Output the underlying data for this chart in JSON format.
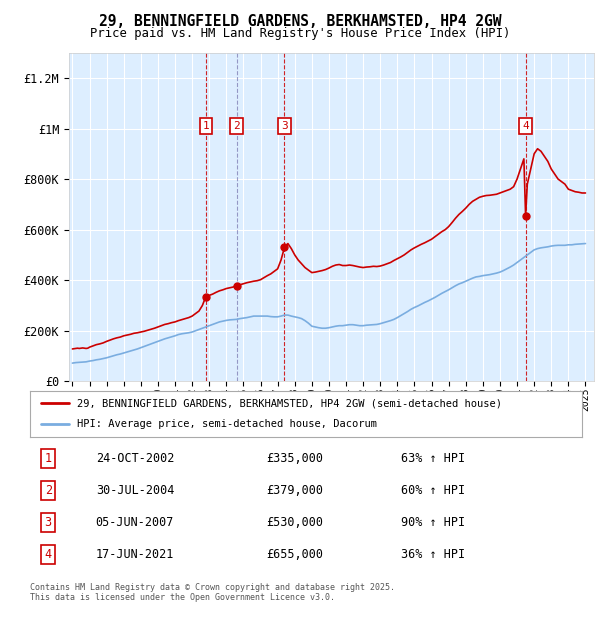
{
  "title": "29, BENNINGFIELD GARDENS, BERKHAMSTED, HP4 2GW",
  "subtitle": "Price paid vs. HM Land Registry's House Price Index (HPI)",
  "legend_line1": "29, BENNINGFIELD GARDENS, BERKHAMSTED, HP4 2GW (semi-detached house)",
  "legend_line2": "HPI: Average price, semi-detached house, Dacorum",
  "footer": "Contains HM Land Registry data © Crown copyright and database right 2025.\nThis data is licensed under the Open Government Licence v3.0.",
  "transactions": [
    {
      "num": 1,
      "date": "24-OCT-2002",
      "price": 335000,
      "hpi_pct": "63% ↑ HPI",
      "year": 2002.8,
      "vline_color": "#cc0000"
    },
    {
      "num": 2,
      "date": "30-JUL-2004",
      "price": 379000,
      "hpi_pct": "60% ↑ HPI",
      "year": 2004.6,
      "vline_color": "#8888bb"
    },
    {
      "num": 3,
      "date": "05-JUN-2007",
      "price": 530000,
      "hpi_pct": "90% ↑ HPI",
      "year": 2007.4,
      "vline_color": "#cc0000"
    },
    {
      "num": 4,
      "date": "17-JUN-2021",
      "price": 655000,
      "hpi_pct": "36% ↑ HPI",
      "year": 2021.5,
      "vline_color": "#cc0000"
    }
  ],
  "red_color": "#cc0000",
  "blue_color": "#7aade0",
  "bg_color": "#ddeeff",
  "grid_color": "#ffffff",
  "ylim": [
    0,
    1300000
  ],
  "yticks": [
    0,
    200000,
    400000,
    600000,
    800000,
    1000000,
    1200000
  ],
  "ytick_labels": [
    "£0",
    "£200K",
    "£400K",
    "£600K",
    "£800K",
    "£1M",
    "£1.2M"
  ],
  "red_x": [
    1995.0,
    1995.1,
    1995.2,
    1995.3,
    1995.4,
    1995.5,
    1995.6,
    1995.7,
    1995.8,
    1995.9,
    1996.0,
    1996.2,
    1996.4,
    1996.6,
    1996.8,
    1997.0,
    1997.2,
    1997.4,
    1997.6,
    1997.8,
    1998.0,
    1998.2,
    1998.4,
    1998.6,
    1998.8,
    1999.0,
    1999.2,
    1999.4,
    1999.6,
    1999.8,
    2000.0,
    2000.2,
    2000.4,
    2000.6,
    2000.8,
    2001.0,
    2001.2,
    2001.4,
    2001.6,
    2001.8,
    2002.0,
    2002.2,
    2002.4,
    2002.6,
    2002.8,
    2003.0,
    2003.2,
    2003.4,
    2003.6,
    2003.8,
    2004.0,
    2004.2,
    2004.4,
    2004.6,
    2004.8,
    2005.0,
    2005.2,
    2005.4,
    2005.6,
    2005.8,
    2006.0,
    2006.2,
    2006.4,
    2006.6,
    2006.8,
    2007.0,
    2007.2,
    2007.4,
    2007.6,
    2007.8,
    2008.0,
    2008.2,
    2008.4,
    2008.6,
    2008.8,
    2009.0,
    2009.2,
    2009.4,
    2009.6,
    2009.8,
    2010.0,
    2010.2,
    2010.4,
    2010.6,
    2010.8,
    2011.0,
    2011.2,
    2011.4,
    2011.6,
    2011.8,
    2012.0,
    2012.2,
    2012.4,
    2012.6,
    2012.8,
    2013.0,
    2013.2,
    2013.4,
    2013.6,
    2013.8,
    2014.0,
    2014.2,
    2014.4,
    2014.6,
    2014.8,
    2015.0,
    2015.2,
    2015.4,
    2015.6,
    2015.8,
    2016.0,
    2016.2,
    2016.4,
    2016.6,
    2016.8,
    2017.0,
    2017.2,
    2017.4,
    2017.6,
    2017.8,
    2018.0,
    2018.2,
    2018.4,
    2018.6,
    2018.8,
    2019.0,
    2019.2,
    2019.4,
    2019.6,
    2019.8,
    2020.0,
    2020.2,
    2020.4,
    2020.6,
    2020.8,
    2021.0,
    2021.2,
    2021.4,
    2021.5,
    2021.6,
    2021.8,
    2022.0,
    2022.2,
    2022.4,
    2022.6,
    2022.8,
    2023.0,
    2023.2,
    2023.4,
    2023.6,
    2023.8,
    2024.0,
    2024.2,
    2024.4,
    2024.6,
    2024.8,
    2025.0
  ],
  "red_y": [
    128000,
    129000,
    130000,
    131000,
    130000,
    131000,
    132000,
    131000,
    130000,
    131000,
    135000,
    140000,
    145000,
    148000,
    152000,
    158000,
    163000,
    168000,
    172000,
    175000,
    180000,
    183000,
    186000,
    190000,
    192000,
    195000,
    198000,
    202000,
    206000,
    210000,
    215000,
    220000,
    225000,
    228000,
    232000,
    235000,
    240000,
    244000,
    248000,
    252000,
    258000,
    268000,
    278000,
    300000,
    335000,
    340000,
    345000,
    352000,
    358000,
    362000,
    367000,
    370000,
    373000,
    379000,
    382000,
    386000,
    390000,
    393000,
    396000,
    398000,
    402000,
    410000,
    418000,
    425000,
    435000,
    445000,
    480000,
    530000,
    545000,
    525000,
    500000,
    480000,
    465000,
    450000,
    440000,
    430000,
    432000,
    435000,
    438000,
    442000,
    448000,
    455000,
    460000,
    462000,
    458000,
    458000,
    460000,
    458000,
    455000,
    452000,
    450000,
    452000,
    453000,
    455000,
    454000,
    456000,
    460000,
    465000,
    470000,
    478000,
    485000,
    492000,
    500000,
    510000,
    520000,
    528000,
    535000,
    542000,
    548000,
    555000,
    562000,
    572000,
    582000,
    592000,
    600000,
    612000,
    628000,
    645000,
    660000,
    672000,
    685000,
    700000,
    712000,
    720000,
    728000,
    732000,
    735000,
    736000,
    738000,
    740000,
    745000,
    750000,
    755000,
    760000,
    770000,
    800000,
    840000,
    880000,
    655000,
    780000,
    840000,
    900000,
    920000,
    910000,
    890000,
    870000,
    840000,
    820000,
    800000,
    790000,
    780000,
    760000,
    755000,
    750000,
    748000,
    745000,
    745000
  ],
  "blue_x": [
    1995.0,
    1995.2,
    1995.4,
    1995.6,
    1995.8,
    1996.0,
    1996.2,
    1996.4,
    1996.6,
    1996.8,
    1997.0,
    1997.2,
    1997.4,
    1997.6,
    1997.8,
    1998.0,
    1998.2,
    1998.4,
    1998.6,
    1998.8,
    1999.0,
    1999.2,
    1999.4,
    1999.6,
    1999.8,
    2000.0,
    2000.2,
    2000.4,
    2000.6,
    2000.8,
    2001.0,
    2001.2,
    2001.4,
    2001.6,
    2001.8,
    2002.0,
    2002.2,
    2002.4,
    2002.6,
    2002.8,
    2003.0,
    2003.2,
    2003.4,
    2003.6,
    2003.8,
    2004.0,
    2004.2,
    2004.4,
    2004.6,
    2004.8,
    2005.0,
    2005.2,
    2005.4,
    2005.6,
    2005.8,
    2006.0,
    2006.2,
    2006.4,
    2006.6,
    2006.8,
    2007.0,
    2007.2,
    2007.4,
    2007.6,
    2007.8,
    2008.0,
    2008.2,
    2008.4,
    2008.6,
    2008.8,
    2009.0,
    2009.2,
    2009.4,
    2009.6,
    2009.8,
    2010.0,
    2010.2,
    2010.4,
    2010.6,
    2010.8,
    2011.0,
    2011.2,
    2011.4,
    2011.6,
    2011.8,
    2012.0,
    2012.2,
    2012.4,
    2012.6,
    2012.8,
    2013.0,
    2013.2,
    2013.4,
    2013.6,
    2013.8,
    2014.0,
    2014.2,
    2014.4,
    2014.6,
    2014.8,
    2015.0,
    2015.2,
    2015.4,
    2015.6,
    2015.8,
    2016.0,
    2016.2,
    2016.4,
    2016.6,
    2016.8,
    2017.0,
    2017.2,
    2017.4,
    2017.6,
    2017.8,
    2018.0,
    2018.2,
    2018.4,
    2018.6,
    2018.8,
    2019.0,
    2019.2,
    2019.4,
    2019.6,
    2019.8,
    2020.0,
    2020.2,
    2020.4,
    2020.6,
    2020.8,
    2021.0,
    2021.2,
    2021.4,
    2021.6,
    2021.8,
    2022.0,
    2022.2,
    2022.4,
    2022.6,
    2022.8,
    2023.0,
    2023.2,
    2023.4,
    2023.6,
    2023.8,
    2024.0,
    2024.2,
    2024.4,
    2024.6,
    2024.8,
    2025.0
  ],
  "blue_y": [
    72000,
    74000,
    75000,
    76000,
    77000,
    80000,
    82000,
    85000,
    87000,
    90000,
    93000,
    97000,
    101000,
    105000,
    108000,
    112000,
    116000,
    120000,
    124000,
    128000,
    133000,
    138000,
    143000,
    148000,
    153000,
    158000,
    163000,
    168000,
    172000,
    176000,
    180000,
    185000,
    188000,
    190000,
    192000,
    195000,
    200000,
    205000,
    210000,
    215000,
    220000,
    225000,
    230000,
    235000,
    238000,
    241000,
    243000,
    244000,
    245000,
    248000,
    250000,
    252000,
    255000,
    258000,
    258000,
    258000,
    258000,
    258000,
    256000,
    255000,
    255000,
    258000,
    262000,
    262000,
    258000,
    255000,
    252000,
    248000,
    240000,
    230000,
    218000,
    215000,
    212000,
    210000,
    210000,
    212000,
    215000,
    218000,
    220000,
    220000,
    222000,
    224000,
    224000,
    222000,
    220000,
    220000,
    222000,
    223000,
    224000,
    225000,
    228000,
    232000,
    236000,
    240000,
    245000,
    252000,
    260000,
    268000,
    276000,
    285000,
    292000,
    298000,
    305000,
    312000,
    318000,
    325000,
    332000,
    340000,
    348000,
    355000,
    362000,
    370000,
    378000,
    385000,
    390000,
    396000,
    402000,
    408000,
    413000,
    415000,
    418000,
    420000,
    422000,
    425000,
    428000,
    432000,
    438000,
    445000,
    452000,
    460000,
    470000,
    480000,
    490000,
    500000,
    510000,
    520000,
    525000,
    528000,
    530000,
    532000,
    535000,
    537000,
    538000,
    538000,
    538000,
    540000,
    540000,
    542000,
    543000,
    544000,
    545000
  ]
}
